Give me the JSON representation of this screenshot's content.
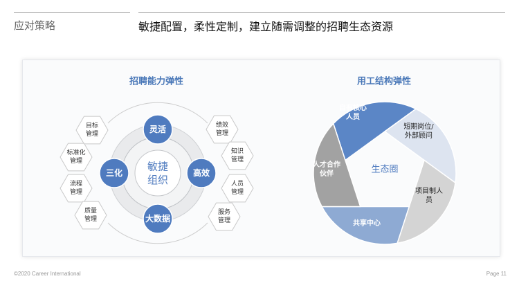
{
  "header": {
    "section": "应对策略",
    "title": "敏捷配置，柔性定制，建立随需调整的招聘生态资源"
  },
  "left": {
    "title": "招聘能力弹性",
    "center": [
      "敏捷",
      "组织"
    ],
    "nodes": [
      "灵活",
      "高效",
      "大数据",
      "三化"
    ],
    "left_hexes": [
      [
        "目标",
        "管理"
      ],
      [
        "标准化",
        "管理"
      ],
      [
        "流程",
        "管理"
      ],
      [
        "质量",
        "管理"
      ]
    ],
    "right_hexes": [
      [
        "绩效",
        "管理"
      ],
      [
        "知识",
        "管理"
      ],
      [
        "人员",
        "管理"
      ],
      [
        "服务",
        "管理"
      ]
    ]
  },
  "right": {
    "title": "用工结构弹性",
    "center": "生态圈",
    "segments": [
      {
        "lines": [
          "自有核心",
          "人员"
        ],
        "color": "#5b86c6",
        "text": "#ffffff"
      },
      {
        "lines": [
          "短期岗位/",
          "外部顾问"
        ],
        "color": "#dde4f0",
        "text": "#222222"
      },
      {
        "lines": [
          "项目制人",
          "员"
        ],
        "color": "#d4d4d4",
        "text": "#222222"
      },
      {
        "lines": [
          "共享中心"
        ],
        "color": "#8eaad3",
        "text": "#ffffff"
      },
      {
        "lines": [
          "人才合作",
          "伙伴"
        ],
        "color": "#a2a2a2",
        "text": "#ffffff"
      }
    ]
  },
  "colors": {
    "accent": "#4f7bbf",
    "title": "#4a78b8"
  },
  "footer": {
    "copyright": "©2020 Career International",
    "page": "Page 11"
  }
}
